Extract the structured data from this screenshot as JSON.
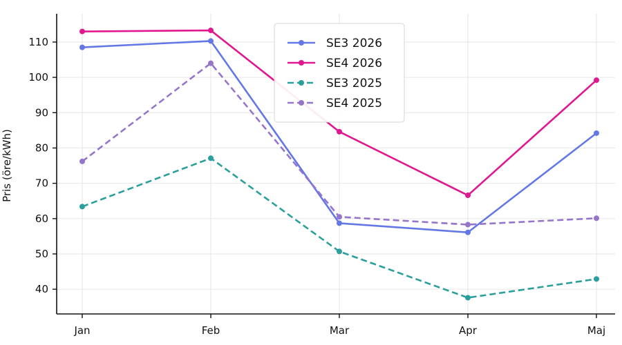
{
  "chart_data": {
    "type": "line",
    "title": "",
    "xlabel": "",
    "ylabel": "Pris (öre/kWh)",
    "categories": [
      "Jan",
      "Feb",
      "Mar",
      "Apr",
      "Maj"
    ],
    "ylim": [
      33,
      118
    ],
    "yticks": [
      40,
      50,
      60,
      70,
      80,
      90,
      100,
      110
    ],
    "grid": true,
    "legend_position": "top-center",
    "series": [
      {
        "name": "SE3 2026",
        "values": [
          108.5,
          110.3,
          58.7,
          56.1,
          84.2
        ],
        "color": "#6378e6",
        "dash": "solid"
      },
      {
        "name": "SE4 2026",
        "values": [
          113.0,
          113.3,
          84.6,
          66.6,
          99.2
        ],
        "color": "#e0178f",
        "dash": "solid"
      },
      {
        "name": "SE3 2025",
        "values": [
          63.4,
          77.1,
          50.7,
          37.6,
          42.9
        ],
        "color": "#2a9f9c",
        "dash": "dashed"
      },
      {
        "name": "SE4 2025",
        "values": [
          76.2,
          104.0,
          60.5,
          58.3,
          60.1
        ],
        "color": "#9575c9",
        "dash": "dashed"
      }
    ]
  }
}
